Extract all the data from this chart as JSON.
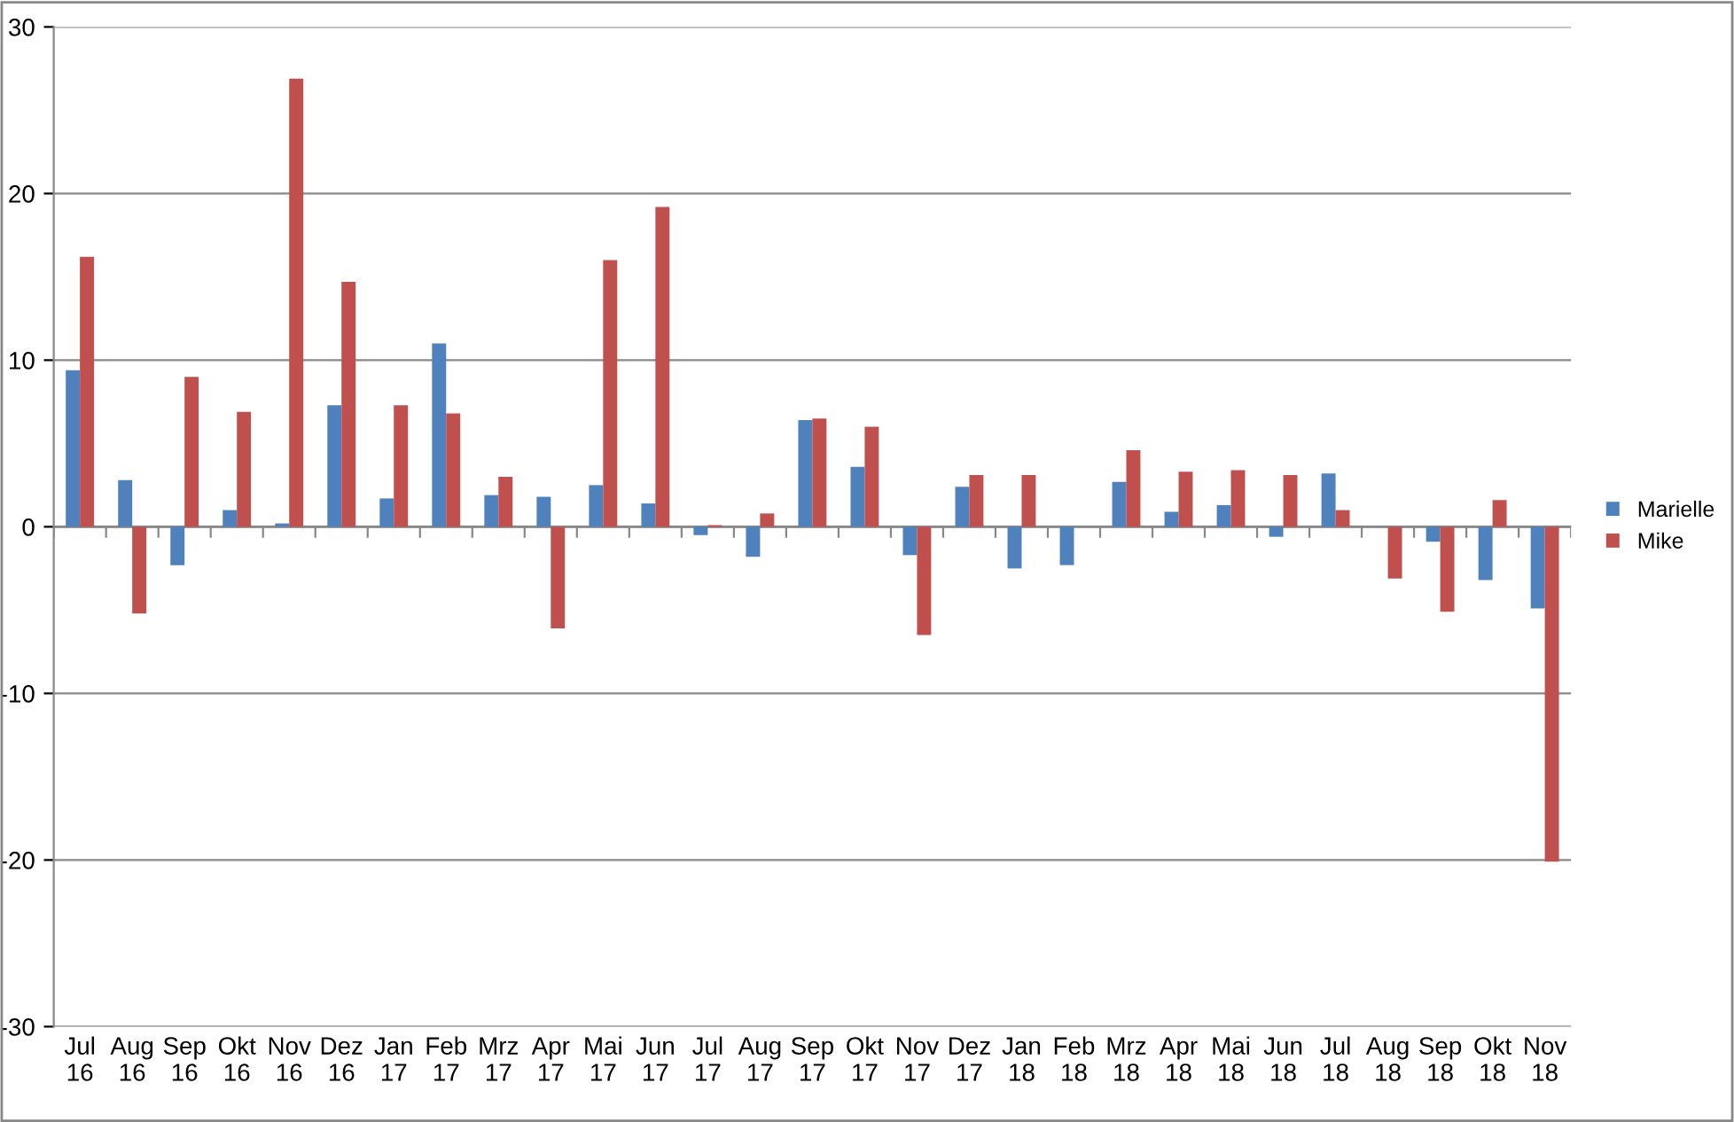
{
  "chart_data": {
    "type": "bar",
    "categories": [
      "Jul\n16",
      "Aug\n16",
      "Sep\n16",
      "Okt\n16",
      "Nov\n16",
      "Dez\n16",
      "Jan\n17",
      "Feb\n17",
      "Mrz\n17",
      "Apr\n17",
      "Mai\n17",
      "Jun\n17",
      "Jul\n17",
      "Aug\n17",
      "Sep\n17",
      "Okt\n17",
      "Nov\n17",
      "Dez\n17",
      "Jan\n18",
      "Feb\n18",
      "Mrz\n18",
      "Apr\n18",
      "Mai\n18",
      "Jun\n18",
      "Jul\n18",
      "Aug\n18",
      "Sep\n18",
      "Okt\n18",
      "Nov\n18"
    ],
    "series": [
      {
        "name": "Marielle",
        "color": "#4f81bd",
        "values": [
          9.4,
          2.8,
          -2.3,
          1.0,
          0.2,
          7.3,
          1.7,
          11.0,
          1.9,
          1.8,
          2.5,
          1.4,
          -0.5,
          -1.8,
          6.4,
          3.6,
          -1.7,
          2.4,
          -2.5,
          -2.3,
          2.7,
          0.9,
          1.3,
          -0.6,
          3.2,
          0,
          -0.9,
          -3.2,
          -4.9
        ]
      },
      {
        "name": "Mike",
        "color": "#c0504d",
        "values": [
          16.2,
          -5.2,
          9.0,
          6.9,
          26.9,
          14.7,
          7.3,
          6.8,
          3.0,
          -6.1,
          16.0,
          19.2,
          0.1,
          0.8,
          6.5,
          6.0,
          -6.5,
          3.1,
          3.1,
          0,
          4.6,
          3.3,
          3.4,
          3.1,
          1.0,
          -3.1,
          -5.1,
          1.6,
          -20.1
        ]
      }
    ],
    "ylim": [
      -30,
      30
    ],
    "yticks": [
      -30,
      -20,
      -10,
      0,
      10,
      20,
      30
    ],
    "grid": "y",
    "legend": "right"
  }
}
